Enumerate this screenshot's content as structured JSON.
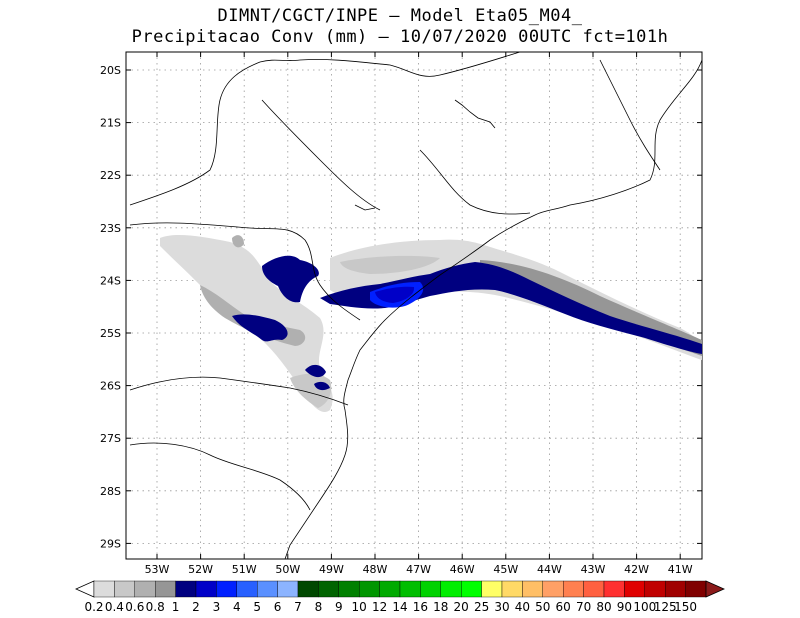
{
  "header": {
    "line1": "DIMNT/CGCT/INPE –  Model Eta05_M04_",
    "line2": "Precipitacao Conv (mm) – 10/07/2020 00UTC fct=101h"
  },
  "map": {
    "lat_labels": [
      "20S",
      "21S",
      "22S",
      "23S",
      "24S",
      "25S",
      "26S",
      "27S",
      "28S",
      "29S"
    ],
    "lon_labels": [
      "53W",
      "52W",
      "51W",
      "50W",
      "49W",
      "48W",
      "47W",
      "46W",
      "45W",
      "44W",
      "43W",
      "42W",
      "41W"
    ]
  },
  "colorbar": {
    "labels": [
      "0.2",
      "0.4",
      "0.6",
      "0.8",
      "1",
      "2",
      "3",
      "4",
      "5",
      "6",
      "7",
      "8",
      "9",
      "10",
      "12",
      "14",
      "16",
      "18",
      "20",
      "25",
      "30",
      "40",
      "50",
      "60",
      "70",
      "80",
      "90",
      "100",
      "125",
      "150"
    ],
    "colors": [
      "#dcdcdc",
      "#c8c8c8",
      "#b0b0b0",
      "#969696",
      "#000080",
      "#0000c8",
      "#0020ff",
      "#2860ff",
      "#5a90ff",
      "#8cb4ff",
      "#004800",
      "#006400",
      "#008000",
      "#009600",
      "#00aa00",
      "#00be00",
      "#00d200",
      "#00ee00",
      "#00ff00",
      "#ffff66",
      "#ffd966",
      "#ffbf66",
      "#ffa066",
      "#ff8050",
      "#ff6040",
      "#ff3030",
      "#e00000",
      "#c00000",
      "#a00000",
      "#800000"
    ],
    "under_color": "#ffffff",
    "over_color": "#8b1a1a"
  }
}
